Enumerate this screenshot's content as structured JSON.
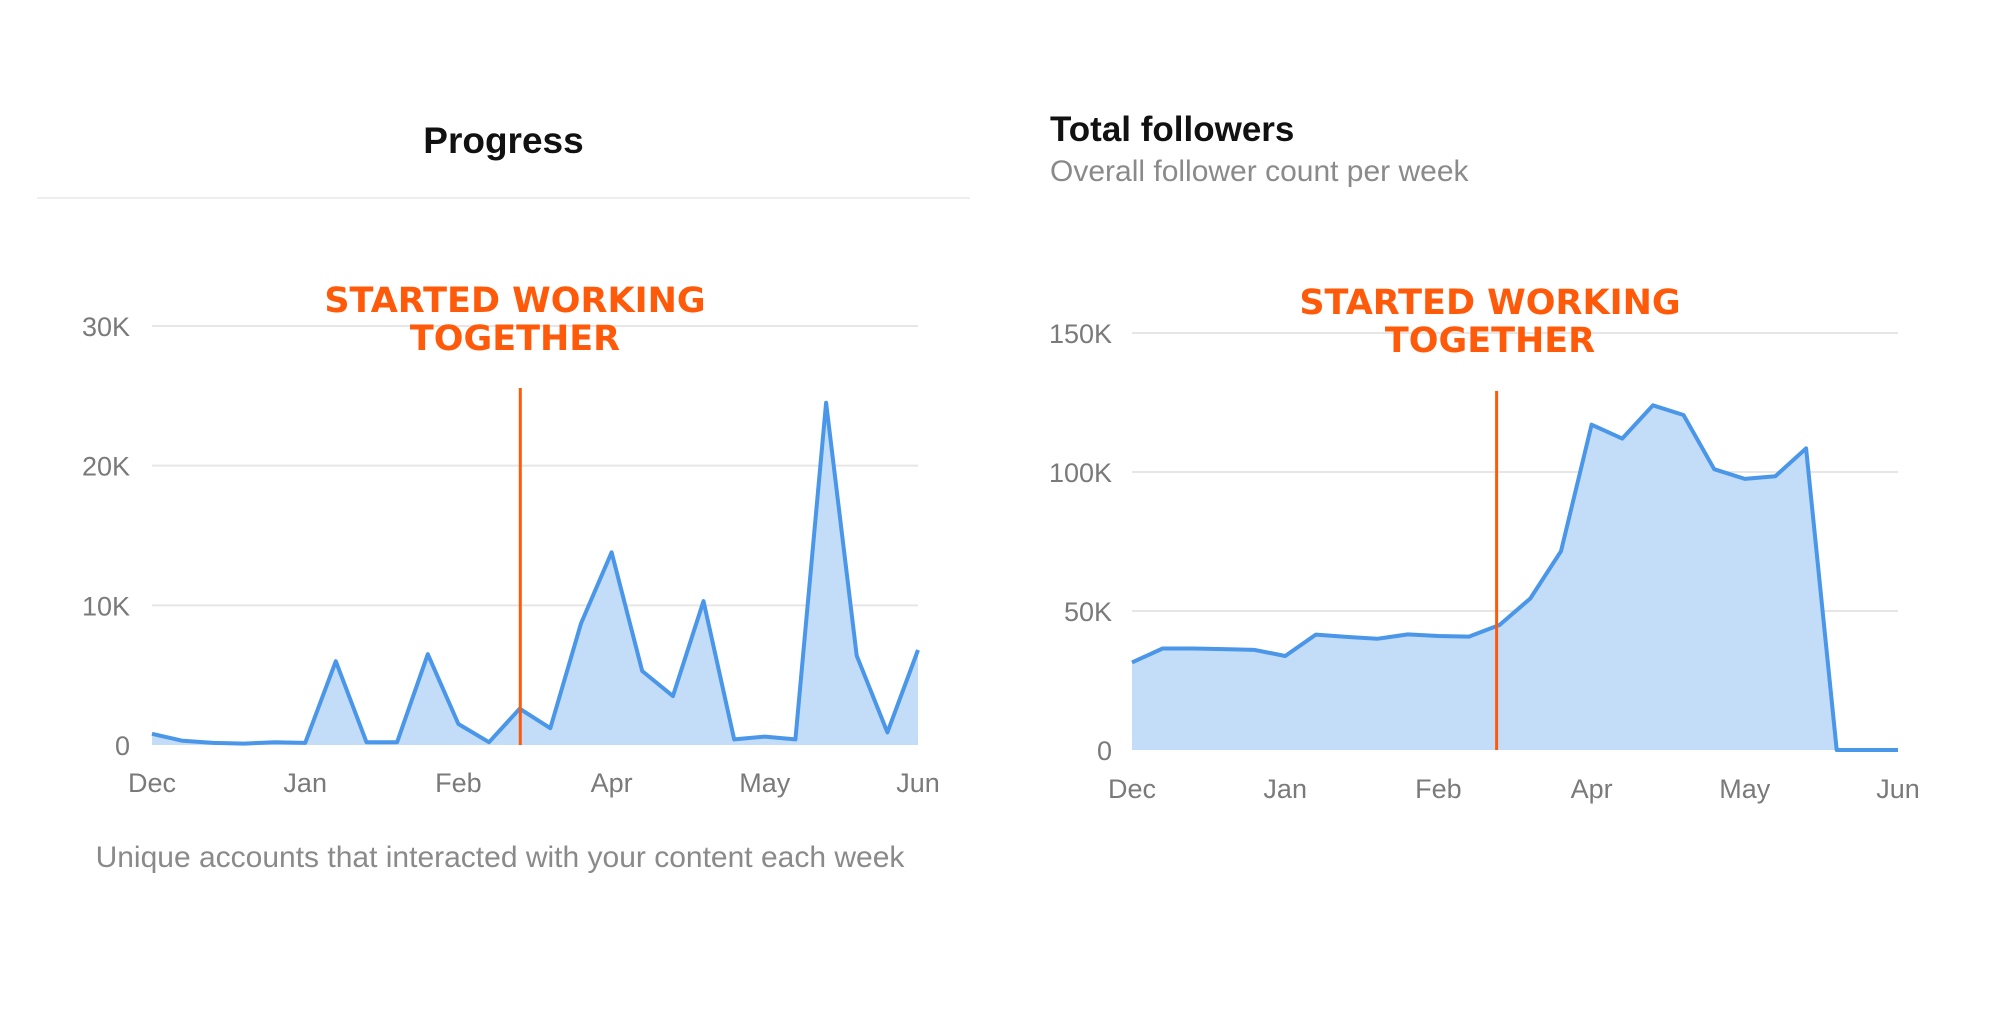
{
  "charts": {
    "progress": {
      "title": "Progress",
      "caption": "Unique accounts that interacted with your content each week",
      "annotation": {
        "line1": "STARTED WORKING",
        "line2": "TOGETHER"
      }
    },
    "followers": {
      "title": "Total followers",
      "subtitle": "Overall follower count per week",
      "annotation": {
        "line1": "STARTED WORKING",
        "line2": "TOGETHER"
      }
    }
  },
  "chart_data": [
    {
      "type": "area",
      "title": "Progress",
      "xlabel": "",
      "ylabel": "",
      "x_tick_labels": [
        "Dec",
        "Jan",
        "Feb",
        "Apr",
        "May",
        "Jun"
      ],
      "y_ticks": [
        0,
        10000,
        20000,
        30000
      ],
      "y_tick_labels": [
        "0",
        "10K",
        "20K",
        "30K"
      ],
      "ylim": [
        0,
        30000
      ],
      "x_range": [
        0,
        25
      ],
      "grid": true,
      "annotation": {
        "text": "STARTED WORKING TOGETHER",
        "x": 12.02
      },
      "x": [
        0,
        1,
        2,
        3,
        4,
        5,
        6,
        7,
        8,
        9,
        10,
        11,
        12,
        13,
        14,
        15,
        16,
        17,
        18,
        19,
        20,
        21,
        22,
        23,
        24,
        25
      ],
      "values": [
        800,
        300,
        150,
        100,
        200,
        150,
        6000,
        200,
        200,
        6500,
        1500,
        200,
        2600,
        1200,
        8700,
        13800,
        5300,
        3500,
        10300,
        400,
        600,
        400,
        24500,
        6400,
        900,
        6800
      ],
      "colors": {
        "line": "#4a96e8",
        "fill": "#c3dcf7",
        "annotation": "#ff5a0a"
      }
    },
    {
      "type": "area",
      "title": "Total followers",
      "subtitle": "Overall follower count per week",
      "xlabel": "",
      "ylabel": "",
      "x_tick_labels": [
        "Dec",
        "Jan",
        "Feb",
        "Apr",
        "May",
        "Jun"
      ],
      "y_ticks": [
        0,
        50000,
        100000,
        150000
      ],
      "y_tick_labels": [
        "0",
        "50K",
        "100K",
        "150K"
      ],
      "ylim": [
        0,
        150000
      ],
      "x_range": [
        0,
        25
      ],
      "grid": true,
      "annotation": {
        "text": "STARTED WORKING TOGETHER",
        "x": 11.9
      },
      "x": [
        0,
        1,
        2,
        3,
        4,
        5,
        6,
        7,
        8,
        9,
        10,
        11,
        12,
        13,
        14,
        15,
        16,
        17,
        18,
        19,
        20,
        21,
        22,
        23,
        24,
        25
      ],
      "values": [
        31500,
        36500,
        36500,
        36300,
        36000,
        33800,
        41500,
        40700,
        40000,
        41600,
        41000,
        40800,
        45000,
        54500,
        71500,
        117000,
        112000,
        124000,
        120500,
        101000,
        97500,
        98500,
        108500,
        0,
        0,
        0
      ],
      "colors": {
        "line": "#4a96e8",
        "fill": "#c3dcf7",
        "annotation": "#ff5a0a"
      }
    }
  ]
}
